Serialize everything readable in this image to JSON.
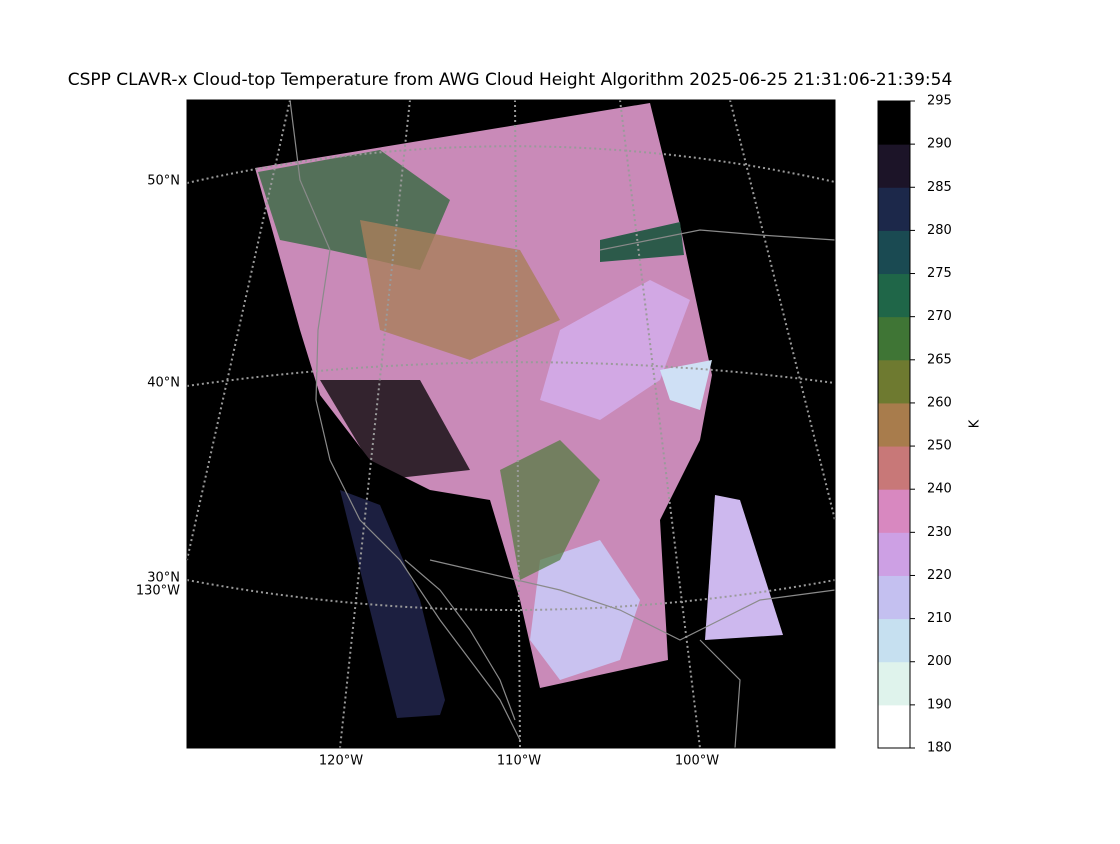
{
  "title": "CSPP CLAVR-x Cloud-top Temperature from AWG Cloud Height Algorithm 2025-06-25 21:31:06-21:39:54",
  "map": {
    "lat_labels": [
      "50°N",
      "40°N",
      "30°N"
    ],
    "lon_labels": [
      "130°W",
      "120°W",
      "110°W",
      "100°W"
    ]
  },
  "colorbar": {
    "label": "K",
    "ticks": [
      180,
      190,
      200,
      210,
      220,
      230,
      240,
      250,
      260,
      265,
      270,
      275,
      280,
      285,
      290,
      295
    ],
    "colors": [
      "#ffffff",
      "#dff3ec",
      "#c6e0f0",
      "#c4c0f0",
      "#cda0e4",
      "#d888c0",
      "#c87878",
      "#a87c4c",
      "#6e7a30",
      "#3f7535",
      "#1f6648",
      "#1a4a52",
      "#1c284a",
      "#1c1428",
      "#000000"
    ]
  }
}
